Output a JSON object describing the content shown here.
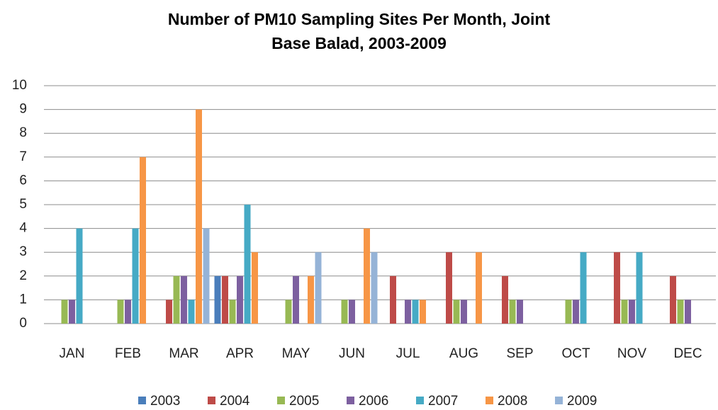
{
  "chart_data": {
    "type": "bar",
    "title": "Number of PM10 Sampling Sites Per Month, Joint Base Balad, 2003-2009",
    "categories": [
      "JAN",
      "FEB",
      "MAR",
      "APR",
      "MAY",
      "JUN",
      "JUL",
      "AUG",
      "SEP",
      "OCT",
      "NOV",
      "DEC"
    ],
    "series": [
      {
        "name": "2003",
        "color": "#4a7ebb",
        "values": [
          0,
          0,
          0,
          2,
          0,
          0,
          0,
          0,
          0,
          0,
          0,
          0
        ]
      },
      {
        "name": "2004",
        "color": "#be4b48",
        "values": [
          0,
          0,
          1,
          2,
          0,
          0,
          2,
          3,
          2,
          0,
          3,
          2
        ]
      },
      {
        "name": "2005",
        "color": "#98b954",
        "values": [
          1,
          1,
          2,
          1,
          1,
          1,
          0,
          1,
          1,
          1,
          1,
          1
        ]
      },
      {
        "name": "2006",
        "color": "#7d60a0",
        "values": [
          1,
          1,
          2,
          2,
          2,
          1,
          1,
          1,
          1,
          1,
          1,
          1
        ]
      },
      {
        "name": "2007",
        "color": "#46aac5",
        "values": [
          4,
          4,
          1,
          5,
          0,
          0,
          1,
          0,
          0,
          3,
          3,
          0
        ]
      },
      {
        "name": "2008",
        "color": "#f79646",
        "values": [
          0,
          7,
          9,
          3,
          2,
          4,
          1,
          3,
          0,
          0,
          0,
          0
        ]
      },
      {
        "name": "2009",
        "color": "#95b3d7",
        "values": [
          0,
          0,
          4,
          0,
          3,
          3,
          0,
          0,
          0,
          0,
          0,
          0
        ]
      }
    ],
    "ylim": [
      0,
      10
    ],
    "yticks": [
      0,
      1,
      2,
      3,
      4,
      5,
      6,
      7,
      8,
      9,
      10
    ],
    "grid": true,
    "legend": "bottom"
  }
}
